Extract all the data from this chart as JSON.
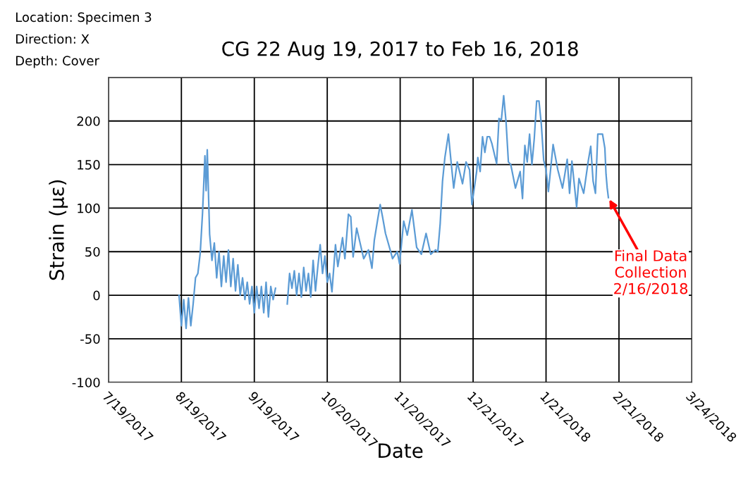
{
  "chart_data": {
    "type": "line",
    "title": "CG 22 Aug 19, 2017 to Feb 16, 2018",
    "xlabel": "Date",
    "ylabel": "Strain (με)",
    "annotations": [
      "Location: Specimen 3",
      "Direction: X",
      "Depth: Cover",
      {
        "text": "Final Data\nCollection\n2/16/2018",
        "x": "2018-02-16T12:00",
        "y": 112
      }
    ],
    "series": [
      {
        "color": "#5b9bd5",
        "x": [
          "2017-08-18",
          "2017-08-19",
          "2017-08-20",
          "2017-08-21",
          "2017-08-22",
          "2017-08-23",
          "2017-08-24",
          "2017-08-25",
          "2017-08-26",
          "2017-08-27",
          "2017-08-28",
          "2017-08-29",
          "2017-08-29T12:00",
          "2017-08-30",
          "2017-08-31",
          "2017-09-01",
          "2017-09-02",
          "2017-09-03",
          "2017-09-04",
          "2017-09-05",
          "2017-09-06",
          "2017-09-07",
          "2017-09-08",
          "2017-09-09",
          "2017-09-10",
          "2017-09-11",
          "2017-09-12",
          "2017-09-13",
          "2017-09-14",
          "2017-09-15",
          "2017-09-16",
          "2017-09-17",
          "2017-09-18",
          "2017-09-19",
          "2017-09-20",
          "2017-09-21",
          "2017-09-22",
          "2017-09-23",
          "2017-09-24",
          "2017-09-25",
          "2017-09-26",
          "2017-09-27",
          "2017-09-28",
          "2017-09-30",
          "2017-10-03",
          "2017-10-04",
          "2017-10-05",
          "2017-10-06",
          "2017-10-07",
          "2017-10-08",
          "2017-10-09",
          "2017-10-10",
          "2017-10-11",
          "2017-10-12",
          "2017-10-13",
          "2017-10-14",
          "2017-10-15",
          "2017-10-16",
          "2017-10-17",
          "2017-10-18",
          "2017-10-19",
          "2017-10-20",
          "2017-10-21",
          "2017-10-22",
          "2017-10-23T12:00",
          "2017-10-24T12:00",
          "2017-10-26T12:00",
          "2017-10-27T12:00",
          "2017-10-29",
          "2017-10-30",
          "2017-10-31",
          "2017-11-01T12:00",
          "2017-11-04T12:00",
          "2017-11-06T12:00",
          "2017-11-08",
          "2017-11-09",
          "2017-11-10T12:00",
          "2017-11-11T12:00",
          "2017-11-12T12:00",
          "2017-11-13T18:00",
          "2017-11-15T18:00",
          "2017-11-16T18:00",
          "2017-11-18T18:00",
          "2017-11-19T18:00",
          "2017-11-21T12:00",
          "2017-11-23",
          "2017-11-25",
          "2017-11-27",
          "2017-11-29",
          "2017-12-01",
          "2017-12-03",
          "2017-12-05",
          "2017-12-06",
          "2017-12-07",
          "2017-12-08",
          "2017-12-09",
          "2017-12-10T12:00",
          "2017-12-11T18:00",
          "2017-12-12T18:00",
          "2017-12-14T06:00",
          "2017-12-16T12:00",
          "2017-12-18",
          "2017-12-19T12:00",
          "2017-12-20T12:00",
          "2017-12-22T12:00",
          "2017-12-23",
          "2017-12-24",
          "2017-12-25",
          "2017-12-26",
          "2017-12-27",
          "2017-12-28",
          "2017-12-29",
          "2017-12-31",
          "2018-01-01",
          "2018-01-02",
          "2018-01-03",
          "2018-01-04",
          "2018-01-05",
          "2018-01-06",
          "2018-01-08",
          "2018-01-10",
          "2018-01-11",
          "2018-01-12",
          "2018-01-13",
          "2018-01-14",
          "2018-01-15",
          "2018-01-16",
          "2018-01-17",
          "2018-01-18",
          "2018-01-19",
          "2018-01-20",
          "2018-01-21",
          "2018-01-22",
          "2018-01-24",
          "2018-01-26",
          "2018-01-28",
          "2018-01-29",
          "2018-01-30",
          "2018-01-31",
          "2018-02-01",
          "2018-02-03",
          "2018-02-04",
          "2018-02-06",
          "2018-02-08",
          "2018-02-09",
          "2018-02-10",
          "2018-02-11",
          "2018-02-12",
          "2018-02-14",
          "2018-02-15",
          "2018-02-15T12:00",
          "2018-02-16",
          "2018-02-16T12:00"
        ],
        "values": [
          0,
          -35,
          -5,
          -38,
          -3,
          -35,
          -10,
          20,
          25,
          48,
          95,
          160,
          120,
          167,
          70,
          40,
          60,
          20,
          50,
          10,
          45,
          15,
          52,
          10,
          42,
          5,
          35,
          0,
          20,
          -5,
          15,
          -10,
          10,
          -20,
          10,
          -15,
          10,
          -20,
          15,
          -25,
          10,
          -5,
          8,
          null,
          -10,
          25,
          8,
          28,
          0,
          25,
          -2,
          32,
          5,
          25,
          -2,
          40,
          5,
          33,
          58,
          25,
          45,
          15,
          25,
          4,
          58,
          33,
          66,
          42,
          93,
          90,
          44,
          77,
          42,
          52,
          31,
          63,
          88,
          104,
          90,
          71,
          52,
          42,
          50,
          36,
          85,
          69,
          98,
          55,
          47,
          71,
          47,
          52,
          50,
          82,
          131,
          158,
          185,
          150,
          123,
          153,
          128,
          153,
          144,
          104,
          142,
          158,
          142,
          182,
          164,
          182,
          182,
          174,
          151,
          203,
          201,
          229,
          199,
          153,
          150,
          123,
          142,
          111,
          172,
          153,
          185,
          150,
          180,
          223,
          223,
          196,
          155,
          144,
          119,
          173,
          144,
          123,
          139,
          156,
          117,
          154,
          101,
          134,
          117,
          155,
          171,
          131,
          117,
          185,
          185,
          169,
          139,
          123,
          112
        ]
      }
    ],
    "xlim": [
      "2017-07-19",
      "2018-03-24"
    ],
    "xticks": [
      {
        "value": "2017-07-19",
        "label": "7/19/2017"
      },
      {
        "value": "2017-08-19",
        "label": "8/19/2017"
      },
      {
        "value": "2017-09-19",
        "label": "9/19/2017"
      },
      {
        "value": "2017-10-20",
        "label": "10/20/2017"
      },
      {
        "value": "2017-11-20",
        "label": "11/20/2017"
      },
      {
        "value": "2017-12-21",
        "label": "12/21/2017"
      },
      {
        "value": "2018-01-21",
        "label": "1/21/2018"
      },
      {
        "value": "2018-02-21",
        "label": "2/21/2018"
      },
      {
        "value": "2018-03-24",
        "label": "3/24/2018"
      }
    ],
    "ylim": [
      -100,
      250
    ],
    "yticks": [
      -100,
      -50,
      0,
      50,
      100,
      150,
      200,
      {
        "value": 250,
        "label": null
      }
    ],
    "grid": true,
    "marker": "none",
    "line_style": "solid",
    "legend": false
  }
}
